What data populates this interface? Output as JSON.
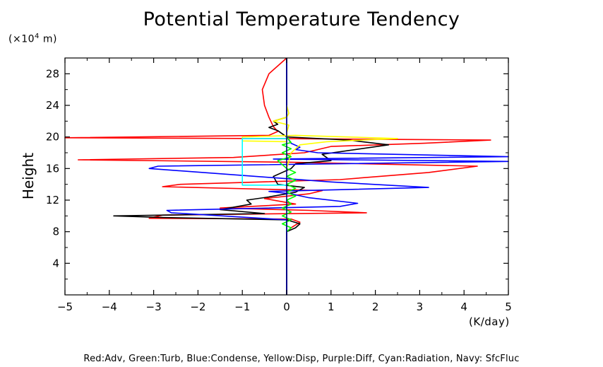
{
  "chart_data": {
    "type": "line",
    "title": "Potential Temperature Tendency",
    "ylabel": "Height",
    "y_unit_prefix": "(×10",
    "y_unit_exp": "4",
    "y_unit_suffix": " m)",
    "xlabel": "(K/day)",
    "xlim": [
      -5,
      5
    ],
    "ylim": [
      0,
      30
    ],
    "x_ticks": [
      -5,
      -4,
      -3,
      -2,
      -1,
      0,
      1,
      2,
      3,
      4,
      5
    ],
    "x_tick_labels": [
      "−5",
      "−4",
      "−3",
      "−2",
      "−1",
      "0",
      "1",
      "2",
      "3",
      "4",
      "5"
    ],
    "y_ticks": [
      4,
      8,
      12,
      16,
      20,
      24,
      28
    ],
    "y_tick_labels": [
      "4",
      "8",
      "12",
      "16",
      "20",
      "24",
      "28"
    ],
    "grid": false,
    "legend_text": "Red:Adv, Green:Turb, Blue:Condense, Yellow:Disp, Purple:Diff, Cyan:Radiation, Navy: SfcFluc",
    "series": [
      {
        "color": "#ff0000",
        "points": [
          [
            0,
            0
          ],
          [
            0,
            8
          ],
          [
            0.1,
            8.5
          ],
          [
            0.3,
            9.2
          ],
          [
            0.1,
            9.6
          ],
          [
            -3.1,
            9.7
          ],
          [
            -2.8,
            10.1
          ],
          [
            1.8,
            10.4
          ],
          [
            0.5,
            10.7
          ],
          [
            -1.5,
            11
          ],
          [
            0.2,
            11.5
          ],
          [
            -0.5,
            12.2
          ],
          [
            0.5,
            12.8
          ],
          [
            0.8,
            13.2
          ],
          [
            -2.8,
            13.7
          ],
          [
            -2.4,
            14
          ],
          [
            1.2,
            14.6
          ],
          [
            3.2,
            15.5
          ],
          [
            4.3,
            16.3
          ],
          [
            0.1,
            16.8
          ],
          [
            -4.7,
            17.1
          ],
          [
            -1.2,
            17.4
          ],
          [
            0.4,
            18
          ],
          [
            1,
            18.8
          ],
          [
            3.1,
            19.2
          ],
          [
            4.6,
            19.6
          ],
          [
            -0.5,
            19.8
          ],
          [
            -5,
            19.9
          ],
          [
            -0.4,
            20.2
          ],
          [
            -0.2,
            20.7
          ],
          [
            -0.3,
            21.3
          ],
          [
            -0.4,
            22.5
          ],
          [
            -0.5,
            24
          ],
          [
            -0.55,
            26
          ],
          [
            -0.4,
            28
          ],
          [
            -0.1,
            29.5
          ],
          [
            0,
            30
          ]
        ]
      },
      {
        "color": "#000000",
        "points": [
          [
            0,
            0
          ],
          [
            0,
            8
          ],
          [
            0.2,
            8.5
          ],
          [
            0.3,
            9
          ],
          [
            0,
            9.5
          ],
          [
            -2.8,
            9.8
          ],
          [
            -3.9,
            10
          ],
          [
            -0.5,
            10.3
          ],
          [
            -1.5,
            10.8
          ],
          [
            -0.8,
            11.5
          ],
          [
            -0.9,
            12
          ],
          [
            -0.4,
            12.4
          ],
          [
            0.2,
            13
          ],
          [
            0.4,
            13.6
          ],
          [
            -0.2,
            14
          ],
          [
            -0.3,
            15
          ],
          [
            0.1,
            16
          ],
          [
            0.2,
            16.6
          ],
          [
            1,
            17
          ],
          [
            0.8,
            17.8
          ],
          [
            2.3,
            19
          ],
          [
            1.4,
            19.6
          ],
          [
            0,
            20
          ],
          [
            -0.1,
            20.4
          ],
          [
            -0.2,
            20.8
          ],
          [
            -0.4,
            21.2
          ],
          [
            -0.2,
            21.6
          ],
          [
            -0.3,
            22
          ],
          [
            0,
            22.5
          ],
          [
            0,
            30
          ]
        ]
      },
      {
        "color": "#0000ff",
        "points": [
          [
            0,
            0
          ],
          [
            0,
            9.5
          ],
          [
            -2.6,
            10.4
          ],
          [
            -2.7,
            10.7
          ],
          [
            1.2,
            11.2
          ],
          [
            1.6,
            11.6
          ],
          [
            0.5,
            12.3
          ],
          [
            0.1,
            12.8
          ],
          [
            -0.4,
            13.1
          ],
          [
            3.2,
            13.6
          ],
          [
            1,
            14.3
          ],
          [
            -3.1,
            16
          ],
          [
            -2.9,
            16.3
          ],
          [
            5,
            16.9
          ],
          [
            -0.3,
            17.2
          ],
          [
            5,
            17.5
          ],
          [
            0.7,
            18
          ],
          [
            0.2,
            18.4
          ],
          [
            0.3,
            18.7
          ],
          [
            0.1,
            19.2
          ],
          [
            0,
            20
          ],
          [
            0,
            30
          ]
        ]
      },
      {
        "color": "#ffff00",
        "points": [
          [
            0,
            16
          ],
          [
            0.1,
            18
          ],
          [
            0.3,
            19
          ],
          [
            0.9,
            19.4
          ],
          [
            2.5,
            19.8
          ],
          [
            0.2,
            20.2
          ],
          [
            -1,
            20
          ],
          [
            -1,
            19.5
          ],
          [
            0,
            19.4
          ],
          [
            0,
            20.5
          ],
          [
            0.05,
            21.5
          ],
          [
            -0.3,
            22
          ],
          [
            0,
            22.5
          ],
          [
            0.05,
            23
          ],
          [
            0,
            24
          ]
        ]
      },
      {
        "color": "#00ff00",
        "points": [
          [
            0,
            8
          ],
          [
            0.1,
            8.5
          ],
          [
            -0.1,
            9
          ],
          [
            0.1,
            9.5
          ],
          [
            -0.1,
            10
          ],
          [
            0.1,
            10.5
          ],
          [
            -0.1,
            11
          ],
          [
            0.1,
            11.5
          ],
          [
            0,
            12
          ],
          [
            0.2,
            12.5
          ],
          [
            0,
            13
          ],
          [
            0.2,
            13.5
          ],
          [
            0,
            14
          ],
          [
            0.2,
            14.5
          ],
          [
            0,
            15
          ],
          [
            0.2,
            15.5
          ],
          [
            0,
            16
          ],
          [
            -0.2,
            17
          ],
          [
            0.1,
            17.5
          ],
          [
            -0.1,
            18
          ],
          [
            0.1,
            18.5
          ],
          [
            -0.1,
            19
          ],
          [
            0.1,
            19.3
          ],
          [
            0,
            20
          ]
        ]
      },
      {
        "color": "#00ffff",
        "points": [
          [
            0,
            13.9
          ],
          [
            -1,
            13.9
          ],
          [
            -1,
            19.8
          ],
          [
            0,
            19.8
          ]
        ]
      },
      {
        "color": "#000080",
        "points": [
          [
            0,
            0
          ],
          [
            0,
            30
          ]
        ]
      }
    ]
  }
}
